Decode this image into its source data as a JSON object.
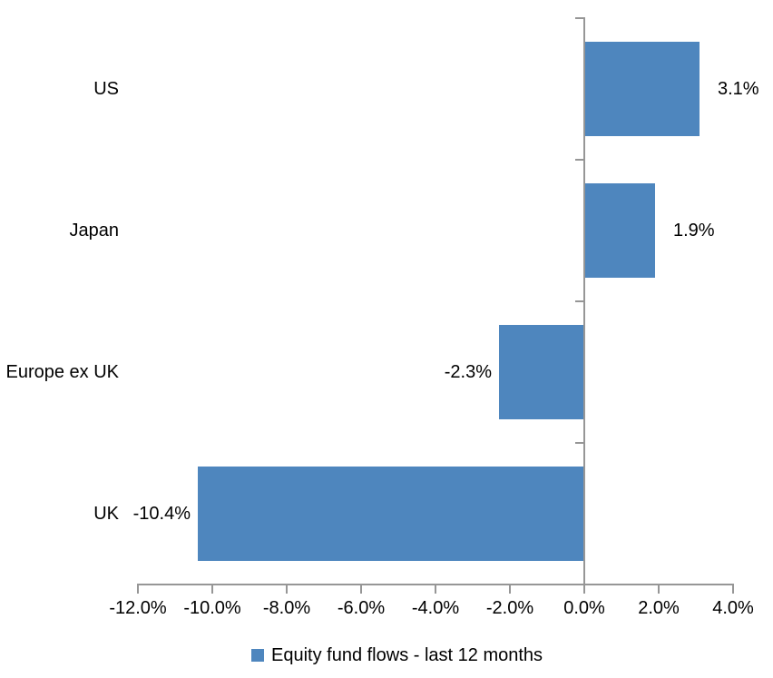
{
  "chart_data": {
    "type": "bar",
    "orientation": "horizontal",
    "title": "",
    "categories": [
      "US",
      "Japan",
      "Europe ex UK",
      "UK"
    ],
    "values": [
      3.1,
      1.9,
      -2.3,
      -10.4
    ],
    "value_labels": [
      "3.1%",
      "1.9%",
      "-2.3%",
      "-10.4%"
    ],
    "series": [
      {
        "name": "Equity fund flows - last 12 months",
        "values": [
          3.1,
          1.9,
          -2.3,
          -10.4
        ]
      }
    ],
    "xlabel": "",
    "ylabel": "",
    "xlim": [
      -12,
      4
    ],
    "x_ticks": [
      -12,
      -10,
      -8,
      -6,
      -4,
      -2,
      0,
      2,
      4
    ],
    "x_tick_labels": [
      "-12.0%",
      "-10.0%",
      "-8.0%",
      "-6.0%",
      "-4.0%",
      "-2.0%",
      "0.0%",
      "2.0%",
      "4.0%"
    ],
    "grid": false,
    "legend_position": "bottom",
    "colors": {
      "bar": "#4E86BE",
      "axis": "#969696",
      "text": "#000000",
      "background": "#FFFFFF"
    }
  },
  "legend": {
    "label": "Equity fund flows - last 12 months"
  }
}
